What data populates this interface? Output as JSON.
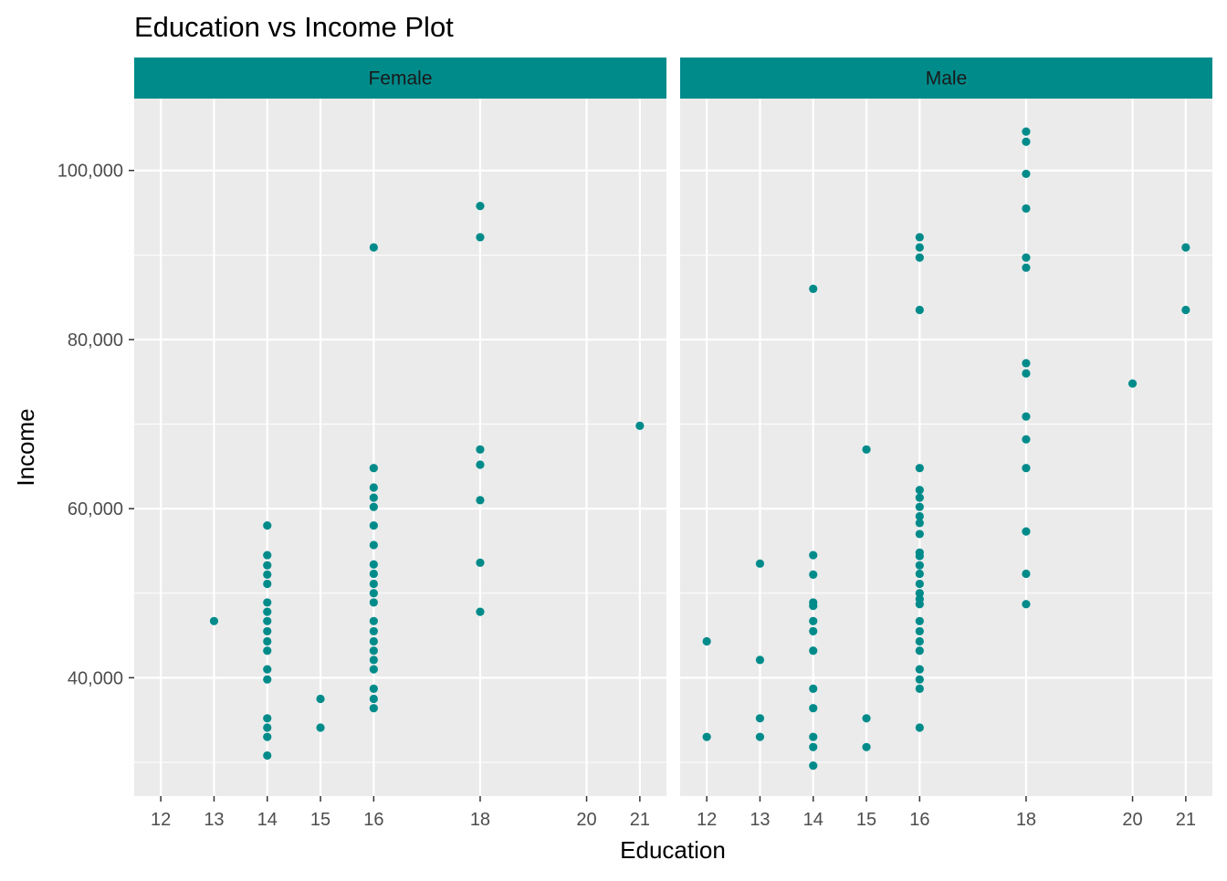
{
  "chart_data": {
    "type": "scatter",
    "title": "Education vs Income Plot",
    "xlabel": "Education",
    "ylabel": "Income",
    "point_color": "#008B8B",
    "strip_color": "#008B8B",
    "panel_bg": "#EBEBEB",
    "grid": true,
    "x_ticks": [
      12,
      13,
      14,
      15,
      16,
      18,
      20,
      21
    ],
    "x_tick_labels": [
      "12",
      "13",
      "14",
      "15",
      "16",
      "18",
      "20",
      "21"
    ],
    "y_ticks": [
      40000,
      60000,
      80000,
      100000
    ],
    "y_tick_labels": [
      "40,000",
      "60,000",
      "80,000",
      "100,000"
    ],
    "ylim": [
      26000,
      108500
    ],
    "panels": [
      {
        "name": "Female",
        "points": [
          {
            "x": 13,
            "y": 46700
          },
          {
            "x": 14,
            "y": 58000
          },
          {
            "x": 14,
            "y": 54500
          },
          {
            "x": 14,
            "y": 53300
          },
          {
            "x": 14,
            "y": 52200
          },
          {
            "x": 14,
            "y": 51100
          },
          {
            "x": 14,
            "y": 48900
          },
          {
            "x": 14,
            "y": 47800
          },
          {
            "x": 14,
            "y": 46700
          },
          {
            "x": 14,
            "y": 45500
          },
          {
            "x": 14,
            "y": 44300
          },
          {
            "x": 14,
            "y": 43200
          },
          {
            "x": 14,
            "y": 41000
          },
          {
            "x": 14,
            "y": 39800
          },
          {
            "x": 14,
            "y": 35200
          },
          {
            "x": 14,
            "y": 34100
          },
          {
            "x": 14,
            "y": 33000
          },
          {
            "x": 14,
            "y": 30800
          },
          {
            "x": 15,
            "y": 37500
          },
          {
            "x": 15,
            "y": 34100
          },
          {
            "x": 16,
            "y": 90900
          },
          {
            "x": 16,
            "y": 64800
          },
          {
            "x": 16,
            "y": 62500
          },
          {
            "x": 16,
            "y": 61300
          },
          {
            "x": 16,
            "y": 60200
          },
          {
            "x": 16,
            "y": 58000
          },
          {
            "x": 16,
            "y": 55700
          },
          {
            "x": 16,
            "y": 53400
          },
          {
            "x": 16,
            "y": 52300
          },
          {
            "x": 16,
            "y": 51100
          },
          {
            "x": 16,
            "y": 50000
          },
          {
            "x": 16,
            "y": 48900
          },
          {
            "x": 16,
            "y": 46700
          },
          {
            "x": 16,
            "y": 45500
          },
          {
            "x": 16,
            "y": 44300
          },
          {
            "x": 16,
            "y": 43200
          },
          {
            "x": 16,
            "y": 42100
          },
          {
            "x": 16,
            "y": 41000
          },
          {
            "x": 16,
            "y": 38700
          },
          {
            "x": 16,
            "y": 37500
          },
          {
            "x": 16,
            "y": 36400
          },
          {
            "x": 18,
            "y": 95800
          },
          {
            "x": 18,
            "y": 92100
          },
          {
            "x": 18,
            "y": 67000
          },
          {
            "x": 18,
            "y": 65200
          },
          {
            "x": 18,
            "y": 61000
          },
          {
            "x": 18,
            "y": 53600
          },
          {
            "x": 18,
            "y": 47800
          },
          {
            "x": 21,
            "y": 69800
          }
        ]
      },
      {
        "name": "Male",
        "points": [
          {
            "x": 12,
            "y": 44300
          },
          {
            "x": 12,
            "y": 33000
          },
          {
            "x": 13,
            "y": 53500
          },
          {
            "x": 13,
            "y": 42100
          },
          {
            "x": 13,
            "y": 35200
          },
          {
            "x": 13,
            "y": 33000
          },
          {
            "x": 14,
            "y": 86000
          },
          {
            "x": 14,
            "y": 54500
          },
          {
            "x": 14,
            "y": 52200
          },
          {
            "x": 14,
            "y": 48900
          },
          {
            "x": 14,
            "y": 48500
          },
          {
            "x": 14,
            "y": 46700
          },
          {
            "x": 14,
            "y": 45500
          },
          {
            "x": 14,
            "y": 43200
          },
          {
            "x": 14,
            "y": 38700
          },
          {
            "x": 14,
            "y": 36400
          },
          {
            "x": 14,
            "y": 33000
          },
          {
            "x": 14,
            "y": 31800
          },
          {
            "x": 14,
            "y": 29600
          },
          {
            "x": 15,
            "y": 67000
          },
          {
            "x": 15,
            "y": 35200
          },
          {
            "x": 15,
            "y": 31800
          },
          {
            "x": 16,
            "y": 92100
          },
          {
            "x": 16,
            "y": 90900
          },
          {
            "x": 16,
            "y": 89700
          },
          {
            "x": 16,
            "y": 83500
          },
          {
            "x": 16,
            "y": 64800
          },
          {
            "x": 16,
            "y": 62200
          },
          {
            "x": 16,
            "y": 61300
          },
          {
            "x": 16,
            "y": 60200
          },
          {
            "x": 16,
            "y": 59100
          },
          {
            "x": 16,
            "y": 58300
          },
          {
            "x": 16,
            "y": 57000
          },
          {
            "x": 16,
            "y": 54800
          },
          {
            "x": 16,
            "y": 54400
          },
          {
            "x": 16,
            "y": 53300
          },
          {
            "x": 16,
            "y": 52300
          },
          {
            "x": 16,
            "y": 51100
          },
          {
            "x": 16,
            "y": 50000
          },
          {
            "x": 16,
            "y": 49300
          },
          {
            "x": 16,
            "y": 48700
          },
          {
            "x": 16,
            "y": 46700
          },
          {
            "x": 16,
            "y": 45500
          },
          {
            "x": 16,
            "y": 44300
          },
          {
            "x": 16,
            "y": 43200
          },
          {
            "x": 16,
            "y": 41000
          },
          {
            "x": 16,
            "y": 39800
          },
          {
            "x": 16,
            "y": 38700
          },
          {
            "x": 16,
            "y": 34100
          },
          {
            "x": 18,
            "y": 104600
          },
          {
            "x": 18,
            "y": 103400
          },
          {
            "x": 18,
            "y": 99600
          },
          {
            "x": 18,
            "y": 95500
          },
          {
            "x": 18,
            "y": 89700
          },
          {
            "x": 18,
            "y": 88500
          },
          {
            "x": 18,
            "y": 77200
          },
          {
            "x": 18,
            "y": 76000
          },
          {
            "x": 18,
            "y": 70900
          },
          {
            "x": 18,
            "y": 68200
          },
          {
            "x": 18,
            "y": 64800
          },
          {
            "x": 18,
            "y": 57300
          },
          {
            "x": 18,
            "y": 52300
          },
          {
            "x": 18,
            "y": 48700
          },
          {
            "x": 20,
            "y": 74800
          },
          {
            "x": 21,
            "y": 90900
          },
          {
            "x": 21,
            "y": 83500
          }
        ]
      }
    ]
  }
}
